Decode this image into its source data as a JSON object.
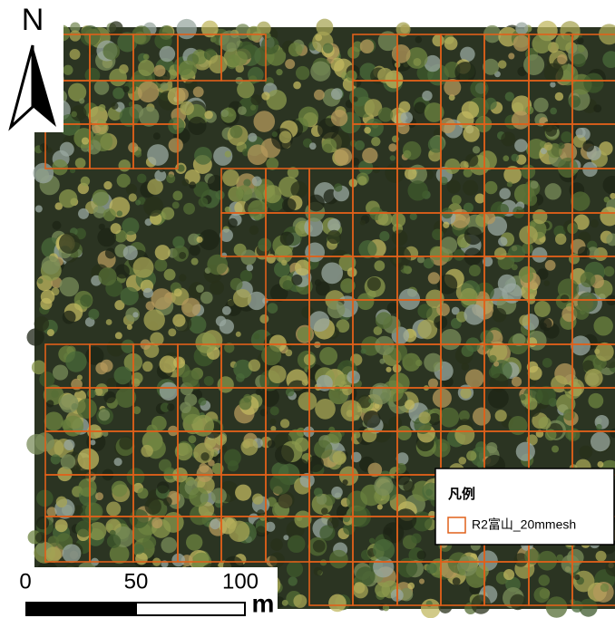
{
  "north_arrow": {
    "label": "N"
  },
  "legend": {
    "title": "凡例",
    "items": [
      {
        "label": "R2富山_20mmesh",
        "color": "#e0601a"
      }
    ]
  },
  "scale_bar": {
    "labels": [
      "0",
      "50",
      "100"
    ],
    "unit": "m"
  }
}
